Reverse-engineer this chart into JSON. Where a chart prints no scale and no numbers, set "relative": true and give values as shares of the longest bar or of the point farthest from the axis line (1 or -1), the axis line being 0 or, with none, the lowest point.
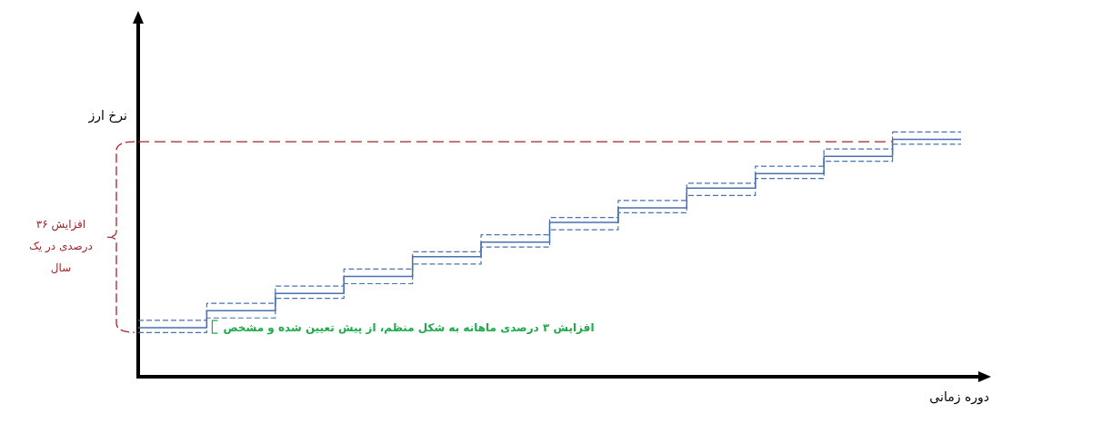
{
  "chart_data": {
    "type": "step",
    "relative": true,
    "xlabel": "دوره زمانی",
    "ylabel": "نرخ ارز",
    "categories": [
      null,
      null,
      null,
      null,
      null,
      null,
      null,
      null,
      null,
      null,
      null,
      null
    ],
    "series": [
      {
        "color": "#4a72b0",
        "line_style": "dashed",
        "values": [
          0.23,
          0.3,
          0.37,
          0.44,
          0.51,
          0.58,
          0.65,
          0.72,
          0.79,
          0.86,
          0.93,
          1
        ]
      },
      {
        "color": "#4a72b0",
        "line_style": "solid",
        "values": [
          0.2,
          0.27,
          0.34,
          0.41,
          0.49,
          0.55,
          0.63,
          0.69,
          0.77,
          0.83,
          0.9,
          0.97
        ]
      },
      {
        "color": "#4a72b0",
        "line_style": "dashed",
        "values": [
          0.18,
          0.24,
          0.32,
          0.38,
          0.46,
          0.53,
          0.6,
          0.67,
          0.74,
          0.81,
          0.88,
          0.95
        ]
      },
      {
        "type": "line",
        "color": "#a0262a",
        "line_style": "dashed",
        "values": [
          0.96,
          0.96,
          0.96,
          0.96,
          0.96,
          0.96,
          0.96,
          0.96,
          0.96,
          0.96,
          0.96,
          0.96
        ]
      }
    ],
    "annotations": [
      "افزایش ۳۶ درصدی در یک سال",
      "افزایش ۳ درصدی ماهانه به شکل منظم، از پیش تعیین شده و مشخص"
    ]
  }
}
